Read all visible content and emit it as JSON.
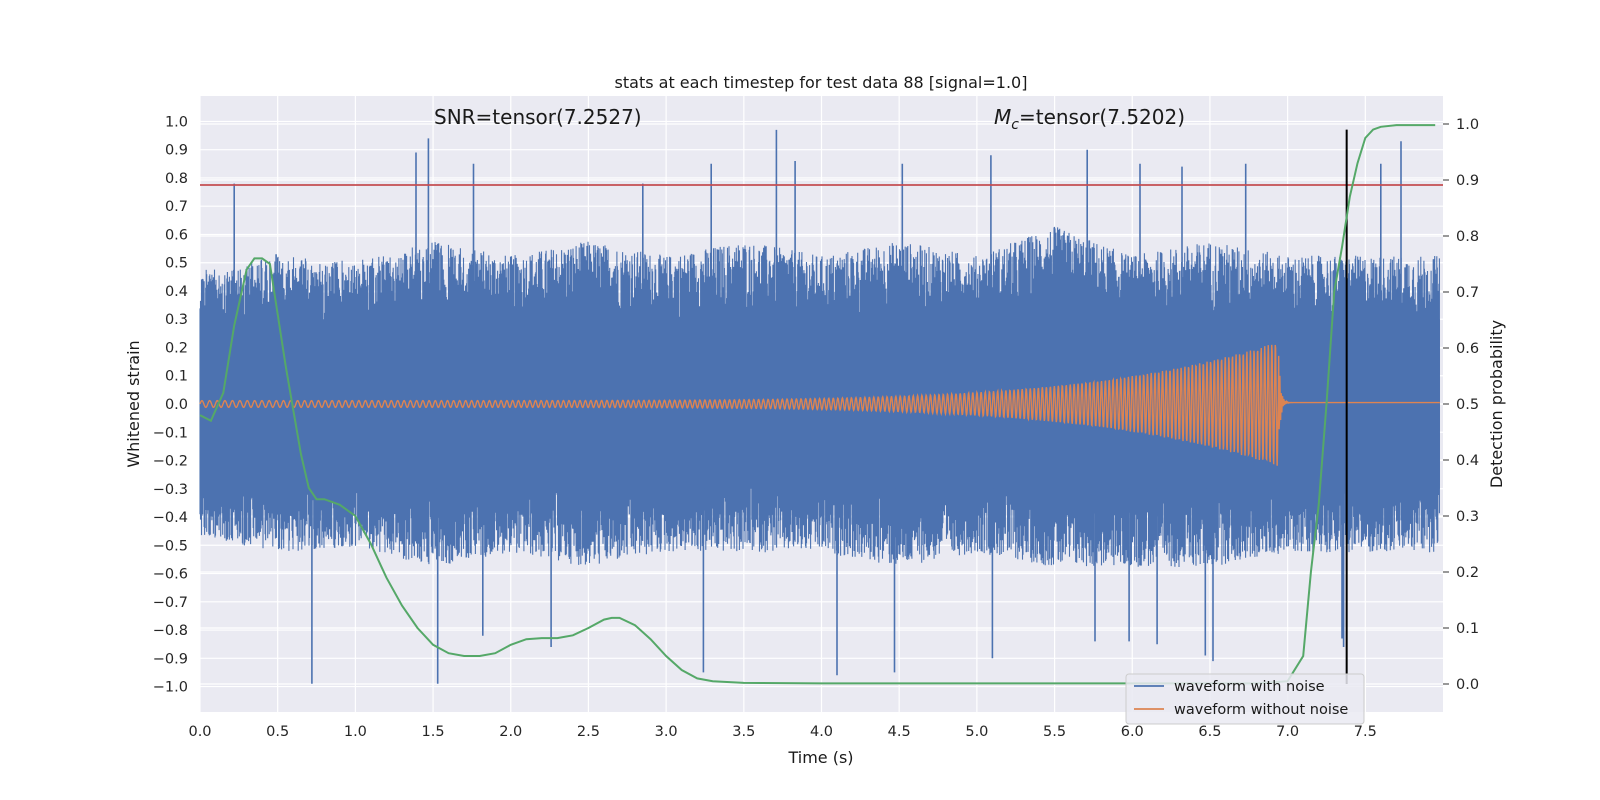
{
  "chart_data": {
    "type": "line",
    "title": "stats at each timestep for test data 88 [signal=1.0]",
    "xlabel": "Time (s)",
    "ylabel": "Whitened strain",
    "y2label": "Detection probability",
    "xlim": [
      0.0,
      8.0
    ],
    "ylim": [
      -1.09,
      1.09
    ],
    "y2lim": [
      -0.05,
      1.05
    ],
    "grid": true,
    "x_ticks": [
      0.0,
      0.5,
      1.0,
      1.5,
      2.0,
      2.5,
      3.0,
      3.5,
      4.0,
      4.5,
      5.0,
      5.5,
      6.0,
      6.5,
      7.0,
      7.5
    ],
    "x_tick_labels": [
      "0.0",
      "0.5",
      "1.0",
      "1.5",
      "2.0",
      "2.5",
      "3.0",
      "3.5",
      "4.0",
      "4.5",
      "5.0",
      "5.5",
      "6.0",
      "6.5",
      "7.0",
      "7.5"
    ],
    "y_ticks": [
      1.0,
      0.9,
      0.8,
      0.7,
      0.6,
      0.5,
      0.4,
      0.3,
      0.2,
      0.1,
      0.0,
      -0.1,
      -0.2,
      -0.3,
      -0.4,
      -0.5,
      -0.6,
      -0.7,
      -0.8,
      -0.9,
      -1.0
    ],
    "y_tick_labels": [
      "1.0",
      "0.9",
      "0.8",
      "0.7",
      "0.6",
      "0.5",
      "0.4",
      "0.3",
      "0.2",
      "0.1",
      "0.0",
      "−0.1",
      "−0.2",
      "−0.3",
      "−0.4",
      "−0.5",
      "−0.6",
      "−0.7",
      "−0.8",
      "−0.9",
      "−1.0"
    ],
    "y2_ticks": [
      1.0,
      0.9,
      0.8,
      0.7,
      0.6,
      0.5,
      0.4,
      0.3,
      0.2,
      0.1,
      0.0
    ],
    "y2_tick_labels": [
      "1.0",
      "0.9",
      "0.8",
      "0.7",
      "0.6",
      "0.5",
      "0.4",
      "0.3",
      "0.2",
      "0.1",
      "0.0"
    ],
    "annotations": {
      "snr": "SNR=tensor(7.2527)",
      "mc_symbol": "M",
      "mc_subscript": "c",
      "mc_value": "=tensor(7.5202)"
    },
    "threshold": {
      "y": 0.775,
      "color": "#c44e52"
    },
    "event_line": {
      "x": 7.38,
      "y2_range": [
        0.0,
        0.99
      ],
      "color": "#000000"
    },
    "legend": {
      "position": "lower right"
    },
    "series": [
      {
        "name": "waveform with noise",
        "color": "#4c72b0",
        "axis": "left",
        "noise_envelope": {
          "positive": [
            [
              0.0,
              0.45
            ],
            [
              0.5,
              0.5
            ],
            [
              1.0,
              0.48
            ],
            [
              1.5,
              0.55
            ],
            [
              2.0,
              0.5
            ],
            [
              2.5,
              0.55
            ],
            [
              3.0,
              0.5
            ],
            [
              3.5,
              0.55
            ],
            [
              4.0,
              0.5
            ],
            [
              4.5,
              0.55
            ],
            [
              5.0,
              0.5
            ],
            [
              5.5,
              0.6
            ],
            [
              6.0,
              0.5
            ],
            [
              6.5,
              0.55
            ],
            [
              7.0,
              0.5
            ],
            [
              7.5,
              0.5
            ],
            [
              8.0,
              0.5
            ]
          ],
          "negative": [
            [
              0.0,
              -0.45
            ],
            [
              0.5,
              -0.5
            ],
            [
              1.0,
              -0.48
            ],
            [
              1.5,
              -0.55
            ],
            [
              2.0,
              -0.5
            ],
            [
              2.5,
              -0.55
            ],
            [
              3.0,
              -0.5
            ],
            [
              3.5,
              -0.5
            ],
            [
              4.0,
              -0.5
            ],
            [
              4.5,
              -0.55
            ],
            [
              5.0,
              -0.5
            ],
            [
              5.5,
              -0.55
            ],
            [
              6.0,
              -0.55
            ],
            [
              6.5,
              -0.55
            ],
            [
              7.0,
              -0.5
            ],
            [
              7.5,
              -0.5
            ],
            [
              8.0,
              -0.5
            ]
          ]
        },
        "peaks": [
          [
            0.22,
            0.78
          ],
          [
            0.49,
            0.53
          ],
          [
            1.39,
            0.89
          ],
          [
            1.47,
            0.94
          ],
          [
            1.76,
            0.85
          ],
          [
            2.85,
            0.78
          ],
          [
            3.29,
            0.85
          ],
          [
            3.71,
            0.97
          ],
          [
            3.83,
            0.86
          ],
          [
            4.52,
            0.85
          ],
          [
            5.09,
            0.88
          ],
          [
            5.71,
            0.9
          ],
          [
            6.05,
            0.85
          ],
          [
            6.32,
            0.84
          ],
          [
            6.73,
            0.85
          ],
          [
            7.6,
            0.85
          ],
          [
            7.73,
            0.93
          ],
          [
            0.72,
            -0.99
          ],
          [
            1.53,
            -0.99
          ],
          [
            1.82,
            -0.82
          ],
          [
            2.26,
            -0.86
          ],
          [
            3.24,
            -0.95
          ],
          [
            4.1,
            -0.96
          ],
          [
            4.47,
            -0.95
          ],
          [
            5.1,
            -0.9
          ],
          [
            5.76,
            -0.84
          ],
          [
            5.98,
            -0.84
          ],
          [
            6.16,
            -0.85
          ],
          [
            6.52,
            -0.91
          ],
          [
            6.47,
            -0.89
          ],
          [
            7.35,
            -0.83
          ],
          [
            7.36,
            -0.86
          ]
        ]
      },
      {
        "name": "waveform without noise",
        "color": "#dd8452",
        "axis": "left",
        "chirp": {
          "t_merger": 6.94,
          "amp_start": 0.012,
          "amp_merger": 0.22,
          "freq_start": 20,
          "ringdown_amp": 0.005
        }
      },
      {
        "name": "detection probability",
        "color": "#55a868",
        "axis": "right",
        "x": [
          0.0,
          0.07,
          0.15,
          0.22,
          0.3,
          0.35,
          0.4,
          0.45,
          0.5,
          0.55,
          0.6,
          0.65,
          0.7,
          0.75,
          0.8,
          0.9,
          1.0,
          1.1,
          1.2,
          1.3,
          1.4,
          1.5,
          1.6,
          1.7,
          1.8,
          1.9,
          2.0,
          2.1,
          2.2,
          2.3,
          2.4,
          2.5,
          2.6,
          2.65,
          2.7,
          2.8,
          2.9,
          3.0,
          3.1,
          3.2,
          3.3,
          3.5,
          4.0,
          5.0,
          6.0,
          6.5,
          6.8,
          7.0,
          7.1,
          7.15,
          7.2,
          7.25,
          7.3,
          7.35,
          7.4,
          7.45,
          7.5,
          7.55,
          7.6,
          7.7,
          7.8,
          7.95
        ],
        "y": [
          0.48,
          0.47,
          0.52,
          0.64,
          0.74,
          0.76,
          0.76,
          0.75,
          0.66,
          0.57,
          0.49,
          0.41,
          0.35,
          0.33,
          0.33,
          0.32,
          0.3,
          0.25,
          0.19,
          0.14,
          0.1,
          0.07,
          0.055,
          0.05,
          0.05,
          0.055,
          0.07,
          0.08,
          0.082,
          0.082,
          0.087,
          0.1,
          0.115,
          0.118,
          0.118,
          0.105,
          0.08,
          0.05,
          0.025,
          0.01,
          0.005,
          0.002,
          0.001,
          0.001,
          0.001,
          0.001,
          0.001,
          0.005,
          0.05,
          0.2,
          0.32,
          0.5,
          0.7,
          0.78,
          0.87,
          0.93,
          0.975,
          0.99,
          0.995,
          0.998,
          0.998,
          0.998
        ]
      }
    ]
  }
}
